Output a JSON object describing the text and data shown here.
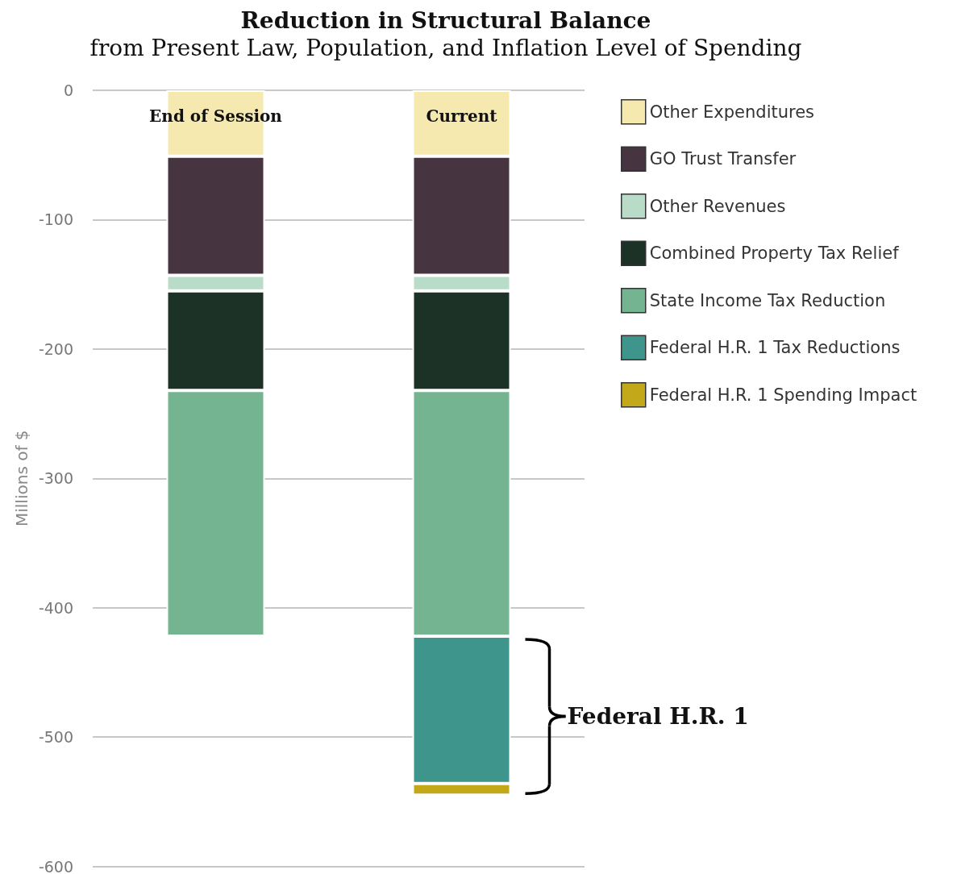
{
  "chart_data": {
    "type": "bar",
    "stacked": true,
    "title": "Reduction in Structural Balance",
    "subtitle": "from Present Law, Population, and Inflation Level of Spending",
    "ylabel": "Millions of $",
    "categories": [
      "End of Session",
      "Current"
    ],
    "series": [
      {
        "name": "Other Expenditures",
        "color": "#f5e9b0",
        "values": [
          -51,
          -51
        ]
      },
      {
        "name": "GO Trust Transfer",
        "color": "#463540",
        "values": [
          -92,
          -92
        ]
      },
      {
        "name": "Other Revenues",
        "color": "#b9dcc9",
        "values": [
          -12,
          -12
        ]
      },
      {
        "name": "Combined Property Tax Relief",
        "color": "#1c3226",
        "values": [
          -77,
          -77
        ]
      },
      {
        "name": "State Income Tax Reduction",
        "color": "#74b491",
        "values": [
          -190,
          -190
        ]
      },
      {
        "name": "Federal H.R. 1 Tax Reductions",
        "color": "#3e958c",
        "values": [
          null,
          -114
        ]
      },
      {
        "name": "Federal H.R. 1 Spending Impact",
        "color": "#c3a81a",
        "values": [
          null,
          -9
        ]
      }
    ],
    "ylim": [
      -600,
      0
    ],
    "yticks": [
      0,
      -100,
      -200,
      -300,
      -400,
      -500,
      -600
    ],
    "grid": "y",
    "legend": "top right",
    "annotations": [
      "Federal H.R. 1"
    ]
  }
}
